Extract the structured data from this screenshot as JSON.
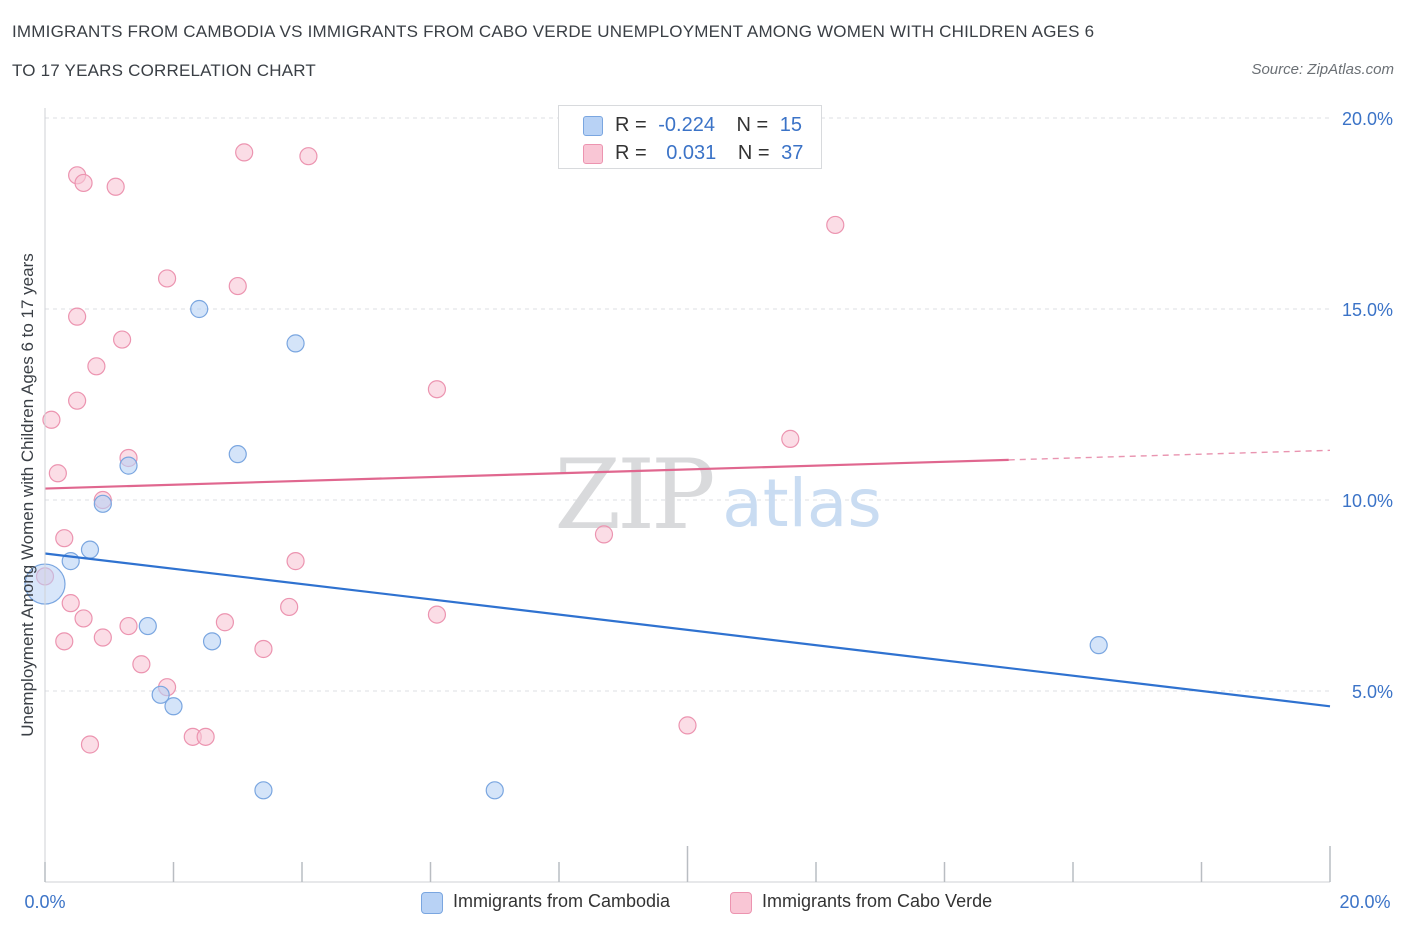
{
  "title_line1": "IMMIGRANTS FROM CAMBODIA VS IMMIGRANTS FROM CABO VERDE UNEMPLOYMENT AMONG WOMEN WITH CHILDREN AGES 6",
  "title_line2": "TO 17 YEARS CORRELATION CHART",
  "source": "Source: ZipAtlas.com",
  "watermark": {
    "zip": "ZIP",
    "atlas": "atlas"
  },
  "colors": {
    "cambodia_fill": "#b8d2f5",
    "cambodia_stroke": "#7aa6e0",
    "cambodia_line": "#2f72d0",
    "caboverde_fill": "#f9c6d5",
    "caboverde_stroke": "#ec94b0",
    "caboverde_line": "#e0678f",
    "tick_label": "#3b73c7",
    "grid": "#dcdfe3"
  },
  "legend": {
    "rows": [
      {
        "r_label": "R =",
        "r_value": "-0.224",
        "n_label": "N =",
        "n_value": "15"
      },
      {
        "r_label": "R =",
        "r_value": "0.031",
        "n_label": "N =",
        "n_value": "37"
      }
    ]
  },
  "bottom_legend": {
    "cambodia": "Immigrants from Cambodia",
    "caboverde": "Immigrants from Cabo Verde"
  },
  "chart_data": {
    "type": "scatter",
    "title": "IMMIGRANTS FROM CAMBODIA VS IMMIGRANTS FROM CABO VERDE UNEMPLOYMENT AMONG WOMEN WITH CHILDREN AGES 6 TO 17 YEARS CORRELATION CHART",
    "xlabel": "",
    "ylabel": "Unemployment Among Women with Children Ages 6 to 17 years",
    "xlim": [
      0,
      20
    ],
    "ylim": [
      0,
      20
    ],
    "x_tick_labels": [
      "0.0%",
      "20.0%"
    ],
    "y_ticks": [
      5,
      10,
      15,
      20
    ],
    "y_tick_labels": [
      "5.0%",
      "10.0%",
      "15.0%",
      "20.0%"
    ],
    "grid": true,
    "series": [
      {
        "name": "Immigrants from Cambodia",
        "points": [
          [
            0.0,
            7.8,
            1
          ],
          [
            0.4,
            8.4,
            0
          ],
          [
            0.7,
            8.7,
            0
          ],
          [
            0.9,
            9.9,
            0
          ],
          [
            1.3,
            10.9,
            0
          ],
          [
            1.6,
            6.7,
            0
          ],
          [
            1.8,
            4.9,
            0
          ],
          [
            2.0,
            4.6,
            0
          ],
          [
            2.4,
            15.0,
            0
          ],
          [
            2.6,
            6.3,
            0
          ],
          [
            3.0,
            11.2,
            0
          ],
          [
            3.4,
            2.4,
            0
          ],
          [
            3.9,
            14.1,
            0
          ],
          [
            7.0,
            2.4,
            0
          ],
          [
            16.4,
            6.2,
            0
          ]
        ],
        "trend": {
          "x": [
            0,
            20
          ],
          "y": [
            8.6,
            4.6
          ],
          "dashed_from": null
        }
      },
      {
        "name": "Immigrants from Cabo Verde",
        "points": [
          [
            0.0,
            8.0,
            0
          ],
          [
            0.1,
            12.1,
            0
          ],
          [
            0.2,
            10.7,
            0
          ],
          [
            0.3,
            6.3,
            0
          ],
          [
            0.3,
            9.0,
            0
          ],
          [
            0.4,
            7.3,
            0
          ],
          [
            0.5,
            12.6,
            0
          ],
          [
            0.5,
            14.8,
            0
          ],
          [
            0.5,
            18.5,
            0
          ],
          [
            0.6,
            18.3,
            0
          ],
          [
            0.6,
            6.9,
            0
          ],
          [
            0.7,
            3.6,
            0
          ],
          [
            0.8,
            13.5,
            0
          ],
          [
            0.9,
            6.4,
            0
          ],
          [
            0.9,
            10.0,
            0
          ],
          [
            1.1,
            18.2,
            0
          ],
          [
            1.2,
            14.2,
            0
          ],
          [
            1.3,
            6.7,
            0
          ],
          [
            1.3,
            11.1,
            0
          ],
          [
            1.5,
            5.7,
            0
          ],
          [
            1.9,
            15.8,
            0
          ],
          [
            1.9,
            5.1,
            0
          ],
          [
            2.3,
            3.8,
            0
          ],
          [
            2.5,
            3.8,
            0
          ],
          [
            2.8,
            6.8,
            0
          ],
          [
            3.0,
            15.6,
            0
          ],
          [
            3.1,
            19.1,
            0
          ],
          [
            3.4,
            6.1,
            0
          ],
          [
            3.8,
            7.2,
            0
          ],
          [
            3.9,
            8.4,
            0
          ],
          [
            4.1,
            19.0,
            0
          ],
          [
            6.1,
            12.9,
            0
          ],
          [
            6.1,
            7.0,
            0
          ],
          [
            8.7,
            9.1,
            0
          ],
          [
            10.0,
            4.1,
            0
          ],
          [
            11.6,
            11.6,
            0
          ],
          [
            12.3,
            17.2,
            0
          ]
        ],
        "trend": {
          "x": [
            0,
            20
          ],
          "y": [
            10.3,
            11.3
          ],
          "dashed_from": 15.0
        }
      }
    ]
  }
}
